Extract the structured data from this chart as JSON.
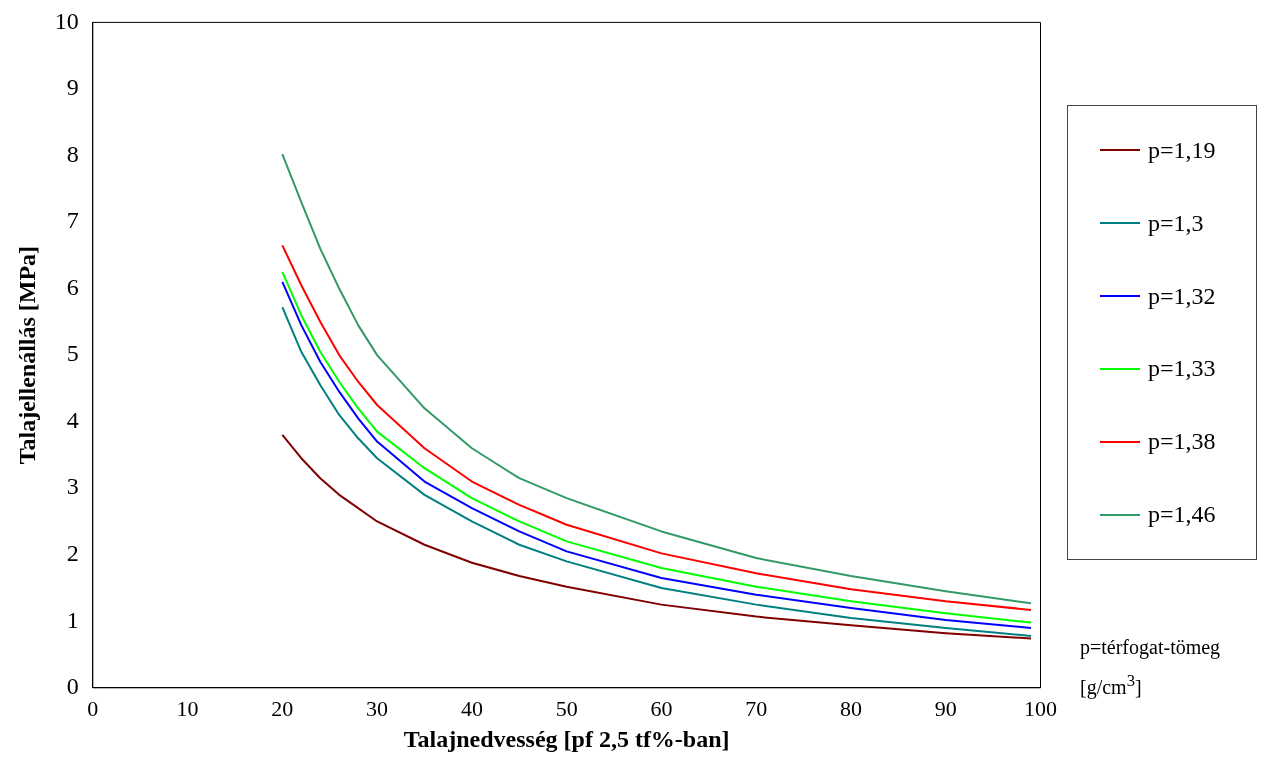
{
  "chart_data": {
    "type": "line",
    "xlabel": "Talajnedvesség [pf 2,5 tf%-ban]",
    "ylabel": "Talajellenállás [MPa]",
    "x": [
      20,
      22,
      24,
      26,
      28,
      30,
      35,
      40,
      45,
      50,
      60,
      70,
      80,
      90,
      99
    ],
    "xlim": [
      0,
      100
    ],
    "xticks": [
      0,
      10,
      20,
      30,
      40,
      50,
      60,
      70,
      80,
      90,
      100
    ],
    "ylim": [
      0,
      10
    ],
    "yticks": [
      0,
      1,
      2,
      3,
      4,
      5,
      6,
      7,
      8,
      9,
      10
    ],
    "legend": "right",
    "marker": "none",
    "line_style": "solid",
    "annotations": [
      "p=térfogat-tömeg [g/cm$^{3}$]"
    ],
    "series": [
      {
        "name": "p=1,19",
        "color": "#800000",
        "values": [
          3.8,
          3.45,
          3.15,
          2.9,
          2.7,
          2.5,
          2.15,
          1.88,
          1.68,
          1.52,
          1.25,
          1.07,
          0.94,
          0.82,
          0.74
        ]
      },
      {
        "name": "p=1,3",
        "color": "#008080",
        "values": [
          5.72,
          5.05,
          4.55,
          4.1,
          3.75,
          3.45,
          2.9,
          2.5,
          2.15,
          1.9,
          1.5,
          1.25,
          1.05,
          0.9,
          0.78
        ]
      },
      {
        "name": "p=1,32",
        "color": "#0000ff",
        "values": [
          6.1,
          5.45,
          4.9,
          4.45,
          4.05,
          3.7,
          3.1,
          2.7,
          2.35,
          2.05,
          1.65,
          1.4,
          1.2,
          1.02,
          0.9
        ]
      },
      {
        "name": "p=1,33",
        "color": "#00ff00",
        "values": [
          6.25,
          5.6,
          5.05,
          4.6,
          4.2,
          3.85,
          3.3,
          2.85,
          2.5,
          2.2,
          1.8,
          1.52,
          1.3,
          1.12,
          0.98
        ]
      },
      {
        "name": "p=1,38",
        "color": "#ff0000",
        "values": [
          6.65,
          6.05,
          5.5,
          5.0,
          4.6,
          4.25,
          3.6,
          3.1,
          2.75,
          2.45,
          2.02,
          1.72,
          1.48,
          1.3,
          1.17
        ]
      },
      {
        "name": "p=1,46",
        "color": "#339966",
        "values": [
          8.02,
          7.3,
          6.6,
          6.0,
          5.45,
          5.0,
          4.2,
          3.6,
          3.15,
          2.85,
          2.35,
          1.95,
          1.68,
          1.45,
          1.27
        ]
      }
    ]
  }
}
